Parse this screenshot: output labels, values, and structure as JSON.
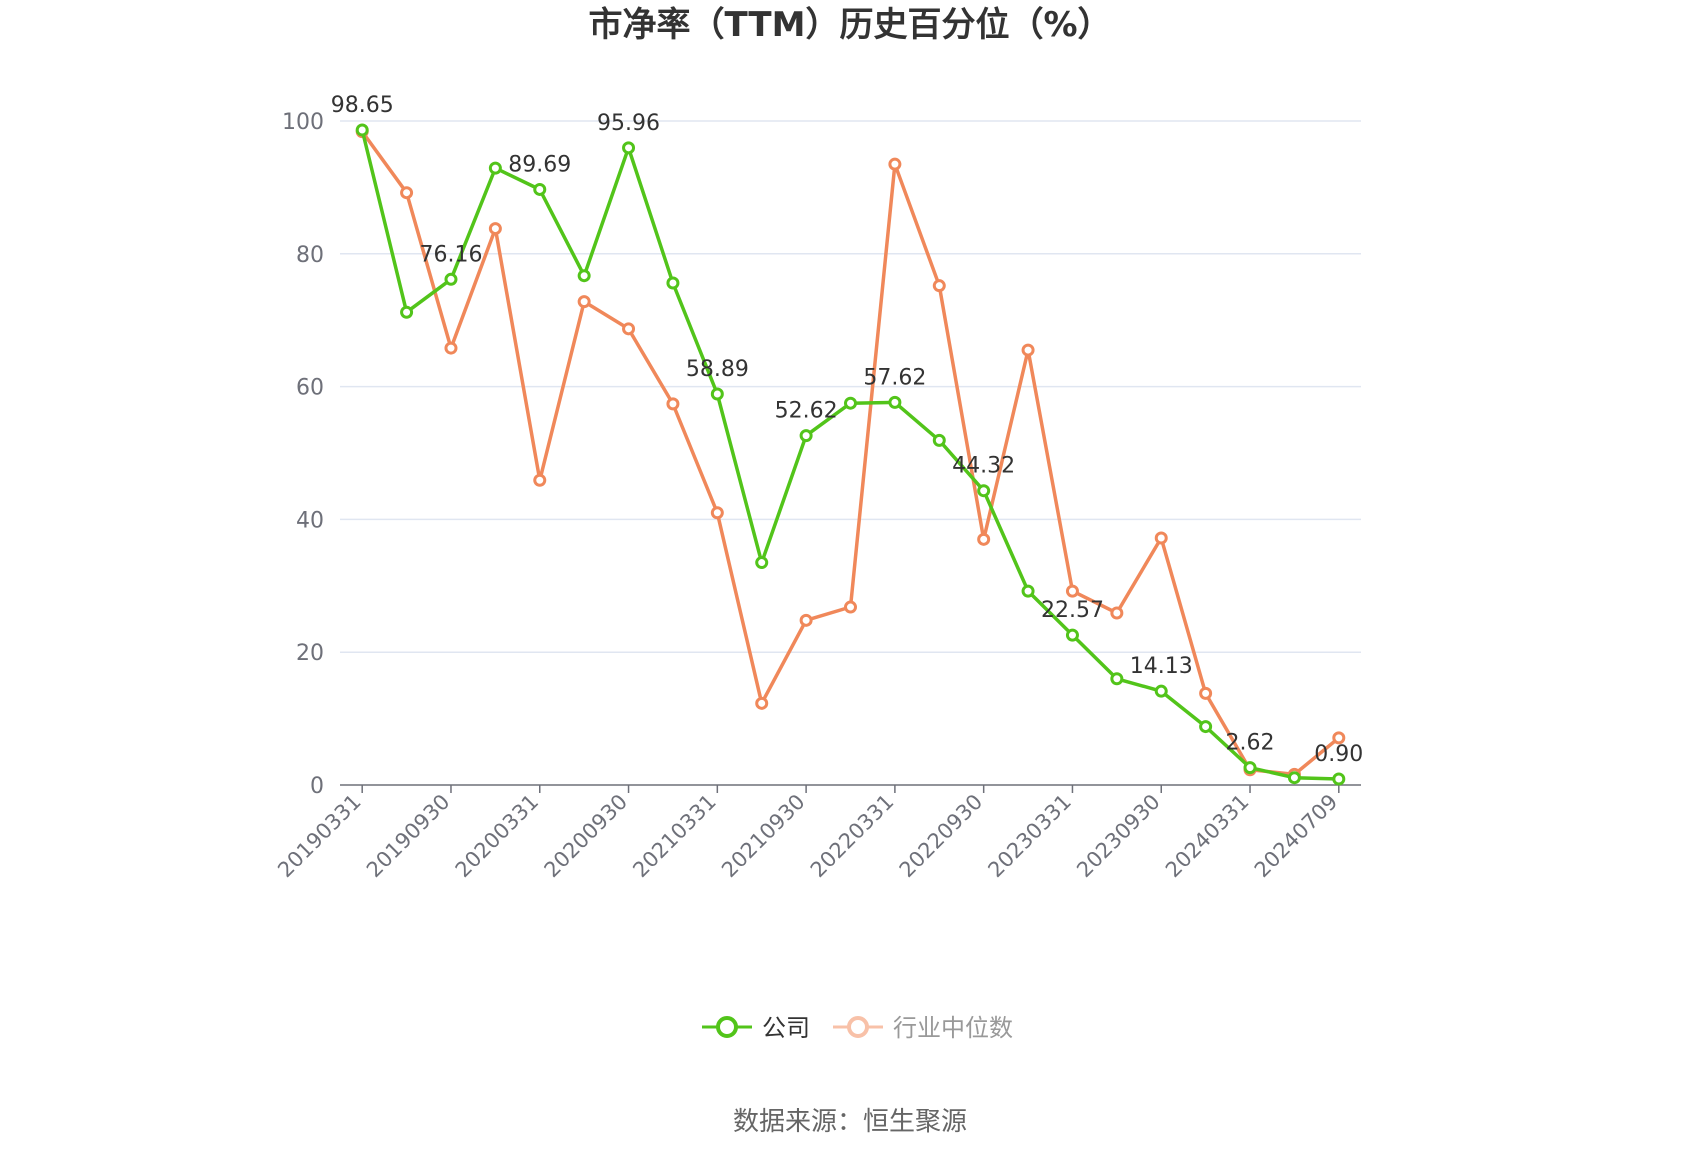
{
  "chart_data": {
    "type": "line",
    "title": "市净率（TTM）历史百分位（%）",
    "xlabel": "",
    "ylabel": "",
    "ylim": [
      0,
      100
    ],
    "y_ticks": [
      0,
      20,
      40,
      60,
      80,
      100
    ],
    "grid": true,
    "x_tick_labels": [
      "20190331",
      "20190930",
      "20200331",
      "20200930",
      "20210331",
      "20210930",
      "20220331",
      "20220930",
      "20230331",
      "20230930",
      "20240331",
      "20240709"
    ],
    "x": [
      "20190331",
      "20190630",
      "20190930",
      "20191231",
      "20200331",
      "20200630",
      "20200930",
      "20201231",
      "20210331",
      "20210630",
      "20210930",
      "20211231",
      "20220331",
      "20220630",
      "20220930",
      "20221231",
      "20230331",
      "20230630",
      "20230930",
      "20231231",
      "20240331",
      "20240630",
      "20240709"
    ],
    "series": [
      {
        "name": "公司",
        "color": "#52c41a",
        "values": [
          98.65,
          71.2,
          76.16,
          92.9,
          89.69,
          76.7,
          95.96,
          75.6,
          58.89,
          33.5,
          52.62,
          57.5,
          57.62,
          51.9,
          44.32,
          29.2,
          22.57,
          16.0,
          14.13,
          8.8,
          2.62,
          1.1,
          0.9
        ],
        "labeled_points": [
          {
            "index": 0,
            "text": "98.65"
          },
          {
            "index": 2,
            "text": "76.16"
          },
          {
            "index": 4,
            "text": "89.69"
          },
          {
            "index": 6,
            "text": "95.96"
          },
          {
            "index": 8,
            "text": "58.89"
          },
          {
            "index": 10,
            "text": "52.62"
          },
          {
            "index": 12,
            "text": "57.62"
          },
          {
            "index": 14,
            "text": "44.32"
          },
          {
            "index": 16,
            "text": "22.57"
          },
          {
            "index": 18,
            "text": "14.13"
          },
          {
            "index": 20,
            "text": "2.62"
          },
          {
            "index": 22,
            "text": "0.90"
          }
        ]
      },
      {
        "name": "行业中位数",
        "color": "#f0885a",
        "values": [
          98.4,
          89.2,
          65.8,
          83.8,
          45.9,
          72.8,
          68.7,
          57.4,
          41.0,
          12.3,
          24.8,
          26.8,
          93.5,
          75.2,
          37.0,
          65.5,
          29.2,
          25.9,
          37.2,
          13.8,
          2.3,
          1.6,
          7.1
        ]
      }
    ],
    "legend": {
      "placement": "bottom-center",
      "items": [
        "公司",
        "行业中位数"
      ],
      "inactive_color": "#f8c1a8"
    },
    "source": "数据来源：恒生聚源"
  }
}
